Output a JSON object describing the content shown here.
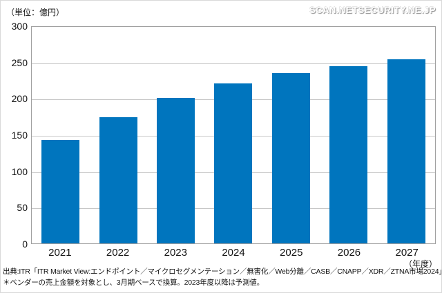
{
  "header": {
    "unit_label": "（単位：億円）",
    "watermark": "SCAN.NETSECURITY.NE.JP"
  },
  "chart_data": {
    "type": "bar",
    "title": "",
    "categories": [
      "2021",
      "2022",
      "2023",
      "2024",
      "2025",
      "2026",
      "2027"
    ],
    "values": [
      143,
      175,
      202,
      222,
      236,
      246,
      255
    ],
    "unit_label": "（単位：億円）",
    "xlabel_unit": "（年度）",
    "ylim": [
      0,
      300
    ],
    "y_ticks": [
      0,
      50,
      100,
      150,
      200,
      250,
      300
    ],
    "bar_color": "#0075be",
    "grid": "on",
    "legend": "none"
  },
  "footer": {
    "source": "出典:ITR「ITR Market View:エンドポイント／マイクロセグメンテーション／無害化／Web分離／CASB／CNAPP／XDR／ZTNA市場2024」",
    "note": "＊ベンダーの売上金額を対象とし、3月期ベースで換算。2023年度以降は予測値。"
  }
}
